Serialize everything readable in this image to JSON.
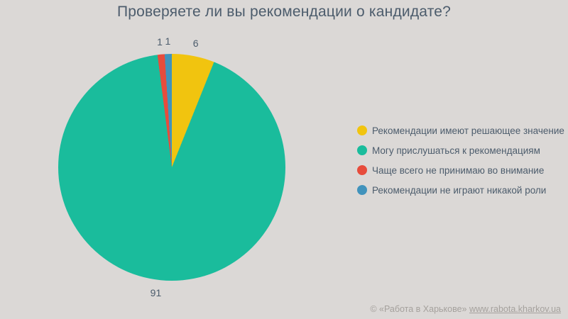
{
  "page": {
    "background": "#dbd8d6",
    "text_color": "#4c5c6c",
    "muted_text_color": "#a5a19d"
  },
  "chart_data": {
    "type": "pie",
    "title": "Проверяете ли вы рекомендации о кандидате?",
    "categories": [
      "Рекомендации имеют решающее значение",
      "Могу прислушаться к рекомендациям",
      "Чаще всего не принимаю во внимание",
      "Рекомендации не играют никакой роли"
    ],
    "values": [
      6,
      91,
      1,
      1
    ],
    "colors": [
      "#f1c40f",
      "#1abc9c",
      "#e74c3c",
      "#4193bc"
    ],
    "start_angle_deg": 0,
    "direction": "clockwise",
    "legend_position": "right",
    "data_labels": "outside",
    "data_label_values": [
      "6",
      "91",
      "1",
      "1"
    ]
  },
  "footer": {
    "copyright": "© «Работа в Харькове»",
    "link": "www.rabota.kharkov.ua"
  }
}
